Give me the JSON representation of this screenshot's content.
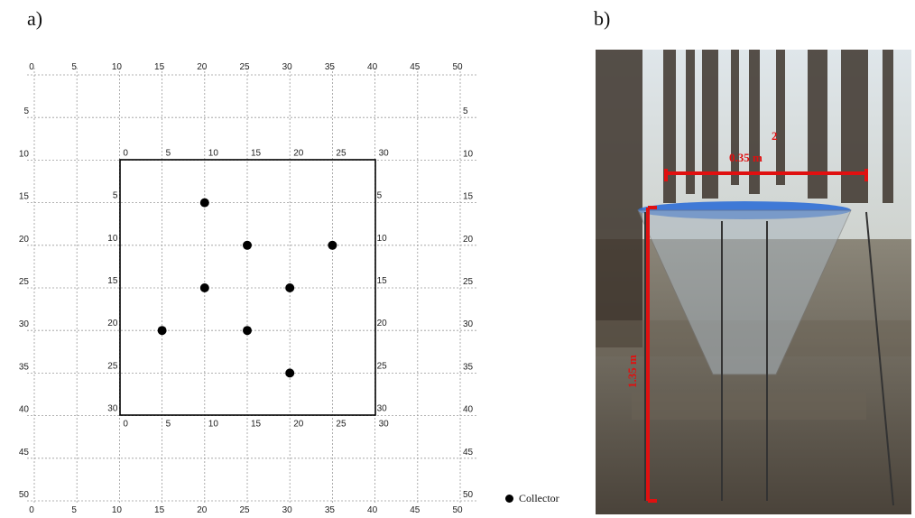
{
  "panel_a_label": "a)",
  "panel_b_label": "b)",
  "outer_ticks": [
    "0",
    "5",
    "10",
    "15",
    "20",
    "25",
    "30",
    "35",
    "40",
    "45",
    "50"
  ],
  "outer_axis_ticks_top": [
    "0",
    "5",
    "10",
    "15",
    "20",
    "25",
    "30",
    "35",
    "40",
    "45",
    "50"
  ],
  "outer_axis_ticks_left": [
    "5",
    "10",
    "15",
    "20",
    "25",
    "30",
    "35",
    "40",
    "45",
    "50"
  ],
  "inner_axis_ticks_top": [
    "0",
    "5",
    "10",
    "15",
    "20",
    "25",
    "30"
  ],
  "inner_axis_ticks_left": [
    "5",
    "10",
    "15",
    "20",
    "25",
    "30"
  ],
  "collectors": [
    {
      "x": 10,
      "y": 5
    },
    {
      "x": 15,
      "y": 10
    },
    {
      "x": 25,
      "y": 10
    },
    {
      "x": 10,
      "y": 15
    },
    {
      "x": 20,
      "y": 15
    },
    {
      "x": 5,
      "y": 20
    },
    {
      "x": 15,
      "y": 20
    },
    {
      "x": 20,
      "y": 25
    }
  ],
  "legend_label": "Collector",
  "photo": {
    "width_label": "0.35 m",
    "width_superscript": "2",
    "height_label": "1.35 m",
    "accent_color": "#e01010"
  }
}
